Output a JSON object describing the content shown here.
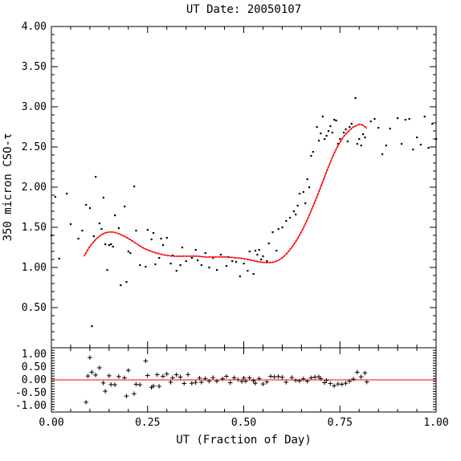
{
  "chart_data": [
    {
      "type": "scatter",
      "title": "UT Date: 20050107",
      "ylabel": "350 micron CSO-τ",
      "xlabel": "",
      "xlim": [
        0,
        1
      ],
      "ylim": [
        0,
        4
      ],
      "y_ticks": [
        "0.50",
        "1.00",
        "1.50",
        "2.00",
        "2.50",
        "3.00",
        "3.50",
        "4.00"
      ],
      "grid": false,
      "series": [
        {
          "kind": "points",
          "color": "#000000",
          "x": [
            0.0,
            0.01,
            0.02,
            0.04,
            0.05,
            0.07,
            0.08,
            0.09,
            0.1,
            0.105,
            0.11,
            0.115,
            0.125,
            0.13,
            0.135,
            0.14,
            0.145,
            0.15,
            0.155,
            0.16,
            0.165,
            0.175,
            0.18,
            0.19,
            0.195,
            0.2,
            0.205,
            0.215,
            0.22,
            0.23,
            0.245,
            0.25,
            0.26,
            0.265,
            0.27,
            0.28,
            0.285,
            0.29,
            0.3,
            0.31,
            0.315,
            0.325,
            0.335,
            0.34,
            0.35,
            0.365,
            0.375,
            0.38,
            0.39,
            0.4,
            0.41,
            0.42,
            0.43,
            0.44,
            0.455,
            0.46,
            0.47,
            0.48,
            0.49,
            0.5,
            0.51,
            0.515,
            0.525,
            0.53,
            0.535,
            0.54,
            0.545,
            0.55,
            0.56,
            0.565,
            0.575,
            0.585,
            0.59,
            0.6,
            0.61,
            0.62,
            0.63,
            0.635,
            0.64,
            0.645,
            0.655,
            0.66,
            0.665,
            0.67,
            0.675,
            0.68,
            0.69,
            0.695,
            0.7,
            0.705,
            0.71,
            0.715,
            0.72,
            0.725,
            0.73,
            0.735,
            0.74,
            0.745,
            0.75,
            0.76,
            0.765,
            0.77,
            0.775,
            0.78,
            0.79,
            0.795,
            0.8,
            0.805,
            0.81,
            0.815,
            0.83,
            0.84,
            0.85,
            0.86,
            0.87,
            0.88,
            0.9,
            0.91,
            0.92,
            0.93,
            0.94,
            0.95,
            0.96,
            0.97,
            0.98,
            0.99,
            1.0
          ],
          "y": [
            1.4,
            1.88,
            1.11,
            1.92,
            1.54,
            1.36,
            1.46,
            1.78,
            1.74,
            0.27,
            1.39,
            2.13,
            1.55,
            1.48,
            1.87,
            1.29,
            0.97,
            1.28,
            1.29,
            1.26,
            1.65,
            1.49,
            0.78,
            1.76,
            0.82,
            1.2,
            1.18,
            2.01,
            1.46,
            1.03,
            1.01,
            1.47,
            1.35,
            1.43,
            1.04,
            1.12,
            1.36,
            1.28,
            1.37,
            1.05,
            1.15,
            0.96,
            1.03,
            1.25,
            1.08,
            1.12,
            1.22,
            1.09,
            1.03,
            1.18,
            1.0,
            1.12,
            0.97,
            1.16,
            1.02,
            1.13,
            1.08,
            1.07,
            0.89,
            1.05,
            0.96,
            1.2,
            0.92,
            1.21,
            1.16,
            1.22,
            1.1,
            1.14,
            1.08,
            1.3,
            1.44,
            1.21,
            1.48,
            1.5,
            1.58,
            1.62,
            1.7,
            1.66,
            1.77,
            1.92,
            1.94,
            1.8,
            2.1,
            2.0,
            2.39,
            2.44,
            2.75,
            2.58,
            2.67,
            2.88,
            2.6,
            2.64,
            2.7,
            2.76,
            2.68,
            2.84,
            2.83,
            2.54,
            2.6,
            2.68,
            2.72,
            2.57,
            2.75,
            2.79,
            3.11,
            2.54,
            2.6,
            2.52,
            2.66,
            2.62,
            2.82,
            2.85,
            2.74,
            2.41,
            2.52,
            2.73,
            2.86,
            2.54,
            2.84,
            2.85,
            2.47,
            2.62,
            2.53,
            2.88,
            2.49,
            2.79,
            2.6
          ]
        },
        {
          "kind": "fit-line",
          "color": "#ff0000",
          "x": [
            0.085,
            0.1,
            0.12,
            0.14,
            0.16,
            0.18,
            0.2,
            0.22,
            0.24,
            0.26,
            0.28,
            0.3,
            0.32,
            0.34,
            0.36,
            0.38,
            0.4,
            0.42,
            0.44,
            0.46,
            0.48,
            0.5,
            0.52,
            0.54,
            0.56,
            0.58,
            0.6,
            0.62,
            0.64,
            0.66,
            0.68,
            0.7,
            0.72,
            0.74,
            0.76,
            0.78,
            0.79,
            0.8,
            0.81,
            0.82
          ],
          "y": [
            1.14,
            1.26,
            1.37,
            1.43,
            1.44,
            1.41,
            1.36,
            1.3,
            1.24,
            1.2,
            1.17,
            1.15,
            1.14,
            1.14,
            1.14,
            1.14,
            1.13,
            1.13,
            1.13,
            1.13,
            1.12,
            1.11,
            1.09,
            1.07,
            1.06,
            1.07,
            1.12,
            1.22,
            1.36,
            1.54,
            1.76,
            2.0,
            2.25,
            2.47,
            2.63,
            2.73,
            2.76,
            2.78,
            2.77,
            2.73
          ]
        }
      ]
    },
    {
      "type": "scatter",
      "title": "",
      "xlabel": "UT (Fraction of Day)",
      "ylabel": "",
      "xlim": [
        0,
        1
      ],
      "ylim": [
        -1.25,
        1.25
      ],
      "x_ticks": [
        "0.00",
        "0.25",
        "0.50",
        "0.75",
        "1.00"
      ],
      "y_ticks": [
        "-1.00",
        "-0.50",
        "0.00",
        "0.50",
        "1.00"
      ],
      "grid": false,
      "series": [
        {
          "kind": "residual-points",
          "color": "#000000",
          "marker": "+",
          "x": [
            0.09,
            0.095,
            0.1,
            0.105,
            0.115,
            0.125,
            0.135,
            0.14,
            0.15,
            0.155,
            0.165,
            0.175,
            0.19,
            0.195,
            0.2,
            0.215,
            0.22,
            0.23,
            0.245,
            0.25,
            0.26,
            0.265,
            0.275,
            0.28,
            0.29,
            0.3,
            0.31,
            0.315,
            0.325,
            0.335,
            0.345,
            0.355,
            0.365,
            0.375,
            0.385,
            0.39,
            0.4,
            0.41,
            0.42,
            0.43,
            0.445,
            0.455,
            0.465,
            0.475,
            0.485,
            0.495,
            0.5,
            0.505,
            0.515,
            0.525,
            0.53,
            0.54,
            0.55,
            0.56,
            0.57,
            0.58,
            0.59,
            0.6,
            0.61,
            0.625,
            0.635,
            0.645,
            0.655,
            0.665,
            0.675,
            0.685,
            0.695,
            0.7,
            0.71,
            0.715,
            0.725,
            0.735,
            0.745,
            0.755,
            0.765,
            0.775,
            0.785,
            0.795,
            0.805,
            0.815,
            0.82
          ],
          "y": [
            -0.87,
            0.15,
            0.87,
            0.3,
            0.19,
            0.47,
            -0.12,
            -0.44,
            0.16,
            -0.18,
            -0.19,
            0.13,
            0.08,
            -0.63,
            0.37,
            -0.54,
            -0.17,
            -0.19,
            0.74,
            0.17,
            -0.29,
            -0.24,
            0.2,
            -0.25,
            0.14,
            0.23,
            -0.09,
            0.08,
            0.2,
            0.11,
            -0.14,
            0.21,
            -0.13,
            -0.1,
            0.07,
            -0.09,
            0.05,
            -0.05,
            0.09,
            -0.05,
            0.04,
            0.14,
            -0.11,
            0.08,
            0.01,
            -0.06,
            0.07,
            -0.05,
            0.08,
            -0.03,
            -0.13,
            0.05,
            -0.16,
            -0.08,
            0.14,
            0.12,
            0.13,
            0.1,
            -0.09,
            0.09,
            -0.02,
            -0.04,
            0.04,
            -0.05,
            0.08,
            0.11,
            0.12,
            0.05,
            -0.11,
            -0.02,
            -0.14,
            -0.23,
            -0.16,
            -0.17,
            -0.13,
            -0.05,
            0.03,
            0.3,
            0.12,
            0.27,
            -0.08
          ]
        },
        {
          "kind": "zero-line",
          "color": "#ff0000",
          "x": [
            0,
            1
          ],
          "y": [
            0,
            0
          ]
        }
      ]
    }
  ]
}
